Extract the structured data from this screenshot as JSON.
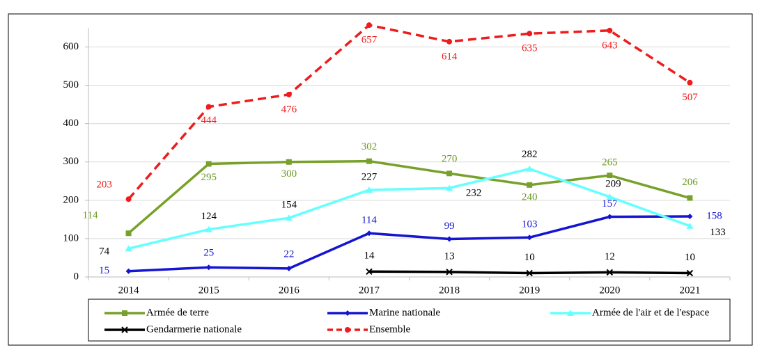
{
  "chart_data": {
    "type": "line",
    "categories": [
      "2014",
      "2015",
      "2016",
      "2017",
      "2018",
      "2019",
      "2020",
      "2021"
    ],
    "series": [
      {
        "name": "Armée de terre",
        "color": "#77a12a",
        "label_color": "#6b9a1f",
        "marker": "square",
        "values": [
          114,
          295,
          300,
          302,
          270,
          240,
          265,
          206
        ]
      },
      {
        "name": "Marine nationale",
        "color": "#1414d2",
        "label_color": "#1414d2",
        "marker": "diamond",
        "values": [
          15,
          25,
          22,
          114,
          99,
          103,
          157,
          158
        ]
      },
      {
        "name": "Armée de l'air et de l'espace",
        "color": "#66ffff",
        "label_color": "#000000",
        "marker": "triangle",
        "values": [
          74,
          124,
          154,
          227,
          232,
          282,
          209,
          133
        ]
      },
      {
        "name": "Gendarmerie nationale",
        "color": "#000000",
        "label_color": "#000000",
        "marker": "x",
        "values": [
          null,
          null,
          null,
          14,
          13,
          10,
          12,
          10
        ]
      },
      {
        "name": "Ensemble",
        "color": "#ee1c1c",
        "label_color": "#ee1c1c",
        "marker": "circle",
        "dashed": true,
        "values": [
          203,
          444,
          476,
          657,
          614,
          635,
          643,
          507
        ]
      }
    ],
    "ylim": [
      0,
      650
    ],
    "yticks": [
      0,
      100,
      200,
      300,
      400,
      500,
      600
    ],
    "grid": true
  }
}
